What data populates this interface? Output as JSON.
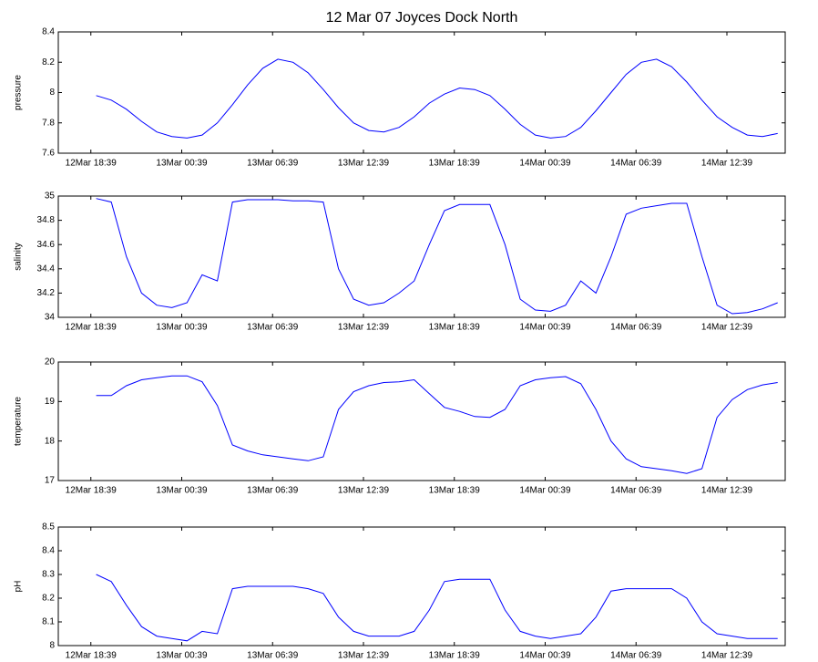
{
  "chart_data": [
    {
      "type": "line",
      "title": "12 Mar 07 Joyces Dock North",
      "y_label": "pressure",
      "x": [
        19,
        20,
        21,
        22,
        23,
        24,
        25,
        26,
        27,
        28,
        29,
        30,
        31,
        32,
        33,
        34,
        35,
        36,
        37,
        38,
        39,
        40,
        41,
        42,
        43,
        44,
        45,
        46,
        47,
        48,
        49,
        50,
        51,
        52,
        53,
        54,
        55,
        56,
        57,
        58,
        59,
        60,
        61,
        62,
        63,
        64
      ],
      "series": [
        {
          "color": "#0000ff",
          "values": [
            7.98,
            7.95,
            7.89,
            7.81,
            7.74,
            7.71,
            7.7,
            7.72,
            7.8,
            7.92,
            8.05,
            8.16,
            8.22,
            8.2,
            8.13,
            8.02,
            7.9,
            7.8,
            7.75,
            7.74,
            7.77,
            7.84,
            7.93,
            7.99,
            8.03,
            8.02,
            7.98,
            7.89,
            7.79,
            7.72,
            7.7,
            7.71,
            7.77,
            7.88,
            8.0,
            8.12,
            8.2,
            8.22,
            8.17,
            8.07,
            7.95,
            7.84,
            7.77,
            7.72,
            7.71,
            7.73
          ]
        }
      ],
      "xlim": [
        16.5,
        64.5
      ],
      "xticks": [
        {
          "value": 18.65,
          "label": "12Mar 18:39"
        },
        {
          "value": 24.65,
          "label": "13Mar 00:39"
        },
        {
          "value": 30.65,
          "label": "13Mar 06:39"
        },
        {
          "value": 36.65,
          "label": "13Mar 12:39"
        },
        {
          "value": 42.65,
          "label": "13Mar 18:39"
        },
        {
          "value": 48.65,
          "label": "14Mar 00:39"
        },
        {
          "value": 54.65,
          "label": "14Mar 06:39"
        },
        {
          "value": 60.65,
          "label": "14Mar 12:39"
        }
      ],
      "ylim": [
        7.6,
        8.4
      ],
      "yticks": [
        7.6,
        7.8,
        8,
        8.2,
        8.4
      ]
    },
    {
      "type": "line",
      "y_label": "salinity",
      "x": [
        19,
        20,
        21,
        22,
        23,
        24,
        25,
        26,
        27,
        28,
        29,
        30,
        31,
        32,
        33,
        34,
        35,
        36,
        37,
        38,
        39,
        40,
        41,
        42,
        43,
        44,
        45,
        46,
        47,
        48,
        49,
        50,
        51,
        52,
        53,
        54,
        55,
        56,
        57,
        58,
        59,
        60,
        61,
        62,
        63,
        64
      ],
      "series": [
        {
          "color": "#0000ff",
          "values": [
            34.98,
            34.95,
            34.5,
            34.2,
            34.1,
            34.08,
            34.12,
            34.35,
            34.3,
            34.95,
            34.97,
            34.97,
            34.97,
            34.96,
            34.96,
            34.95,
            34.4,
            34.15,
            34.1,
            34.12,
            34.2,
            34.3,
            34.6,
            34.88,
            34.93,
            34.93,
            34.93,
            34.6,
            34.15,
            34.06,
            34.05,
            34.1,
            34.3,
            34.2,
            34.5,
            34.85,
            34.9,
            34.92,
            34.94,
            34.94,
            34.5,
            34.1,
            34.03,
            34.04,
            34.07,
            34.12
          ]
        }
      ],
      "xlim": [
        16.5,
        64.5
      ],
      "xticks": [
        {
          "value": 18.65,
          "label": "12Mar 18:39"
        },
        {
          "value": 24.65,
          "label": "13Mar 00:39"
        },
        {
          "value": 30.65,
          "label": "13Mar 06:39"
        },
        {
          "value": 36.65,
          "label": "13Mar 12:39"
        },
        {
          "value": 42.65,
          "label": "13Mar 18:39"
        },
        {
          "value": 48.65,
          "label": "14Mar 00:39"
        },
        {
          "value": 54.65,
          "label": "14Mar 06:39"
        },
        {
          "value": 60.65,
          "label": "14Mar 12:39"
        }
      ],
      "ylim": [
        34,
        35
      ],
      "yticks": [
        34,
        34.2,
        34.4,
        34.6,
        34.8,
        35
      ]
    },
    {
      "type": "line",
      "y_label": "temperature",
      "x": [
        19,
        20,
        21,
        22,
        23,
        24,
        25,
        26,
        27,
        28,
        29,
        30,
        31,
        32,
        33,
        34,
        35,
        36,
        37,
        38,
        39,
        40,
        41,
        42,
        43,
        44,
        45,
        46,
        47,
        48,
        49,
        50,
        51,
        52,
        53,
        54,
        55,
        56,
        57,
        58,
        59,
        60,
        61,
        62,
        63,
        64
      ],
      "series": [
        {
          "color": "#0000ff",
          "values": [
            19.15,
            19.15,
            19.4,
            19.55,
            19.6,
            19.65,
            19.65,
            19.5,
            18.9,
            17.9,
            17.75,
            17.65,
            17.6,
            17.55,
            17.5,
            17.6,
            18.8,
            19.25,
            19.4,
            19.48,
            19.5,
            19.55,
            19.2,
            18.85,
            18.75,
            18.62,
            18.6,
            18.8,
            19.4,
            19.55,
            19.6,
            19.63,
            19.45,
            18.8,
            18.0,
            17.55,
            17.35,
            17.3,
            17.25,
            17.18,
            17.3,
            18.6,
            19.05,
            19.3,
            19.42,
            19.48
          ]
        }
      ],
      "xlim": [
        16.5,
        64.5
      ],
      "xticks": [
        {
          "value": 18.65,
          "label": "12Mar 18:39"
        },
        {
          "value": 24.65,
          "label": "13Mar 00:39"
        },
        {
          "value": 30.65,
          "label": "13Mar 06:39"
        },
        {
          "value": 36.65,
          "label": "13Mar 12:39"
        },
        {
          "value": 42.65,
          "label": "13Mar 18:39"
        },
        {
          "value": 48.65,
          "label": "14Mar 00:39"
        },
        {
          "value": 54.65,
          "label": "14Mar 06:39"
        },
        {
          "value": 60.65,
          "label": "14Mar 12:39"
        }
      ],
      "ylim": [
        17,
        20
      ],
      "yticks": [
        17,
        18,
        19,
        20
      ]
    },
    {
      "type": "line",
      "y_label": "pH",
      "x": [
        19,
        20,
        21,
        22,
        23,
        24,
        25,
        26,
        27,
        28,
        29,
        30,
        31,
        32,
        33,
        34,
        35,
        36,
        37,
        38,
        39,
        40,
        41,
        42,
        43,
        44,
        45,
        46,
        47,
        48,
        49,
        50,
        51,
        52,
        53,
        54,
        55,
        56,
        57,
        58,
        59,
        60,
        61,
        62,
        63,
        64
      ],
      "series": [
        {
          "color": "#0000ff",
          "values": [
            8.3,
            8.27,
            8.17,
            8.08,
            8.04,
            8.03,
            8.02,
            8.06,
            8.05,
            8.24,
            8.25,
            8.25,
            8.25,
            8.25,
            8.24,
            8.22,
            8.12,
            8.06,
            8.04,
            8.04,
            8.04,
            8.06,
            8.15,
            8.27,
            8.28,
            8.28,
            8.28,
            8.15,
            8.06,
            8.04,
            8.03,
            8.04,
            8.05,
            8.12,
            8.23,
            8.24,
            8.24,
            8.24,
            8.24,
            8.2,
            8.1,
            8.05,
            8.04,
            8.03,
            8.03,
            8.03
          ]
        }
      ],
      "xlim": [
        16.5,
        64.5
      ],
      "xticks": [
        {
          "value": 18.65,
          "label": "12Mar 18:39"
        },
        {
          "value": 24.65,
          "label": "13Mar 00:39"
        },
        {
          "value": 30.65,
          "label": "13Mar 06:39"
        },
        {
          "value": 36.65,
          "label": "13Mar 12:39"
        },
        {
          "value": 42.65,
          "label": "13Mar 18:39"
        },
        {
          "value": 48.65,
          "label": "14Mar 00:39"
        },
        {
          "value": 54.65,
          "label": "14Mar 06:39"
        },
        {
          "value": 60.65,
          "label": "14Mar 12:39"
        }
      ],
      "ylim": [
        8,
        8.5
      ],
      "yticks": [
        8,
        8.1,
        8.2,
        8.3,
        8.4,
        8.5
      ]
    }
  ]
}
